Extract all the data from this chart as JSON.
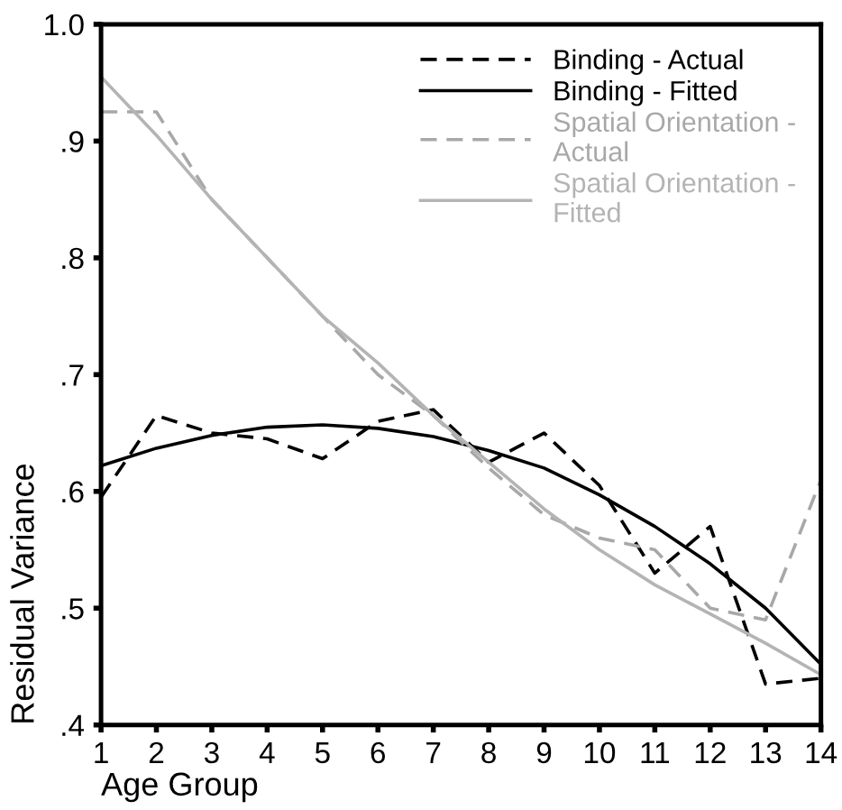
{
  "chart_data": {
    "type": "line",
    "xlabel": "Age Group",
    "ylabel": "Residual Variance",
    "x": [
      1,
      2,
      3,
      4,
      5,
      6,
      7,
      8,
      9,
      10,
      11,
      12,
      13,
      14
    ],
    "xlim": [
      1,
      14
    ],
    "xticks": [
      1,
      2,
      3,
      4,
      5,
      6,
      7,
      8,
      9,
      10,
      11,
      12,
      13,
      14
    ],
    "ylim": [
      0.4,
      1.0
    ],
    "yticks": [
      {
        "value": 0.4,
        "label": ".4"
      },
      {
        "value": 0.5,
        "label": ".5"
      },
      {
        "value": 0.6,
        "label": ".6"
      },
      {
        "value": 0.7,
        "label": ".7"
      },
      {
        "value": 0.8,
        "label": ".8"
      },
      {
        "value": 0.9,
        "label": ".9"
      },
      {
        "value": 1.0,
        "label": "1.0"
      }
    ],
    "grid": false,
    "legend": "top right",
    "marker": "none",
    "series": [
      {
        "name": "Binding - Actual",
        "color": "#000000",
        "line_style": "dashed",
        "values": [
          0.595,
          0.665,
          0.65,
          0.645,
          0.628,
          0.66,
          0.67,
          0.625,
          0.65,
          0.605,
          0.53,
          0.57,
          0.435,
          0.44
        ]
      },
      {
        "name": "Binding - Fitted",
        "color": "#000000",
        "line_style": "solid",
        "values": [
          0.622,
          0.637,
          0.648,
          0.655,
          0.657,
          0.654,
          0.647,
          0.635,
          0.62,
          0.597,
          0.57,
          0.538,
          0.5,
          0.452
        ]
      },
      {
        "name": "Spatial Orientation - Actual",
        "color": "#a8a8a8",
        "line_style": "dashed",
        "values": [
          0.925,
          0.925,
          0.85,
          0.8,
          0.75,
          0.7,
          0.665,
          0.62,
          0.58,
          0.56,
          0.55,
          0.5,
          0.49,
          0.61
        ]
      },
      {
        "name": "Spatial Orientation - Fitted",
        "color": "#b4b4b4",
        "line_style": "solid",
        "values": [
          0.955,
          0.905,
          0.85,
          0.8,
          0.75,
          0.71,
          0.665,
          0.625,
          0.585,
          0.55,
          0.52,
          0.495,
          0.47,
          0.443
        ]
      }
    ]
  }
}
